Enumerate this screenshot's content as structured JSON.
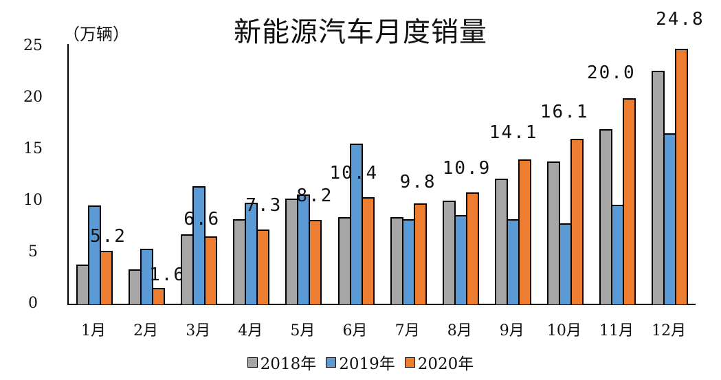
{
  "chart_data": {
    "type": "bar",
    "title": "新能源汽车月度销量",
    "ylabel": "（万辆）",
    "xlabel": "",
    "ylim": [
      0,
      25
    ],
    "yticks": [
      0,
      5,
      10,
      15,
      20,
      25
    ],
    "grid": false,
    "legend_position": "bottom",
    "categories": [
      "1月",
      "2月",
      "3月",
      "4月",
      "5月",
      "6月",
      "7月",
      "8月",
      "9月",
      "10月",
      "11月",
      "12月"
    ],
    "series": [
      {
        "name": "2018年",
        "color": "#a6a6a6",
        "values": [
          3.9,
          3.4,
          6.8,
          8.3,
          10.3,
          8.5,
          8.5,
          10.1,
          12.2,
          13.9,
          17.0,
          22.7
        ]
      },
      {
        "name": "2019年",
        "color": "#5b9bd5",
        "values": [
          9.6,
          5.4,
          11.5,
          9.9,
          10.7,
          15.6,
          8.3,
          8.7,
          8.3,
          7.9,
          9.7,
          16.6
        ]
      },
      {
        "name": "2020年",
        "color": "#ed7d31",
        "values": [
          5.2,
          1.6,
          6.6,
          7.3,
          8.2,
          10.4,
          9.8,
          10.9,
          14.1,
          16.1,
          20.0,
          24.8
        ]
      }
    ],
    "data_labels": {
      "series": "2020年",
      "labels": [
        "5.2",
        "1.6",
        "6.6",
        "7.3",
        "8.2",
        "10.4",
        "9.8",
        "10.9",
        "14.1",
        "16.1",
        "20.0",
        "24.8"
      ]
    }
  },
  "title": "新能源汽车月度销量",
  "unit": "（万辆）",
  "yticks": [
    "0",
    "5",
    "10",
    "15",
    "20",
    "25"
  ],
  "legend": [
    "2018年",
    "2019年",
    "2020年"
  ]
}
